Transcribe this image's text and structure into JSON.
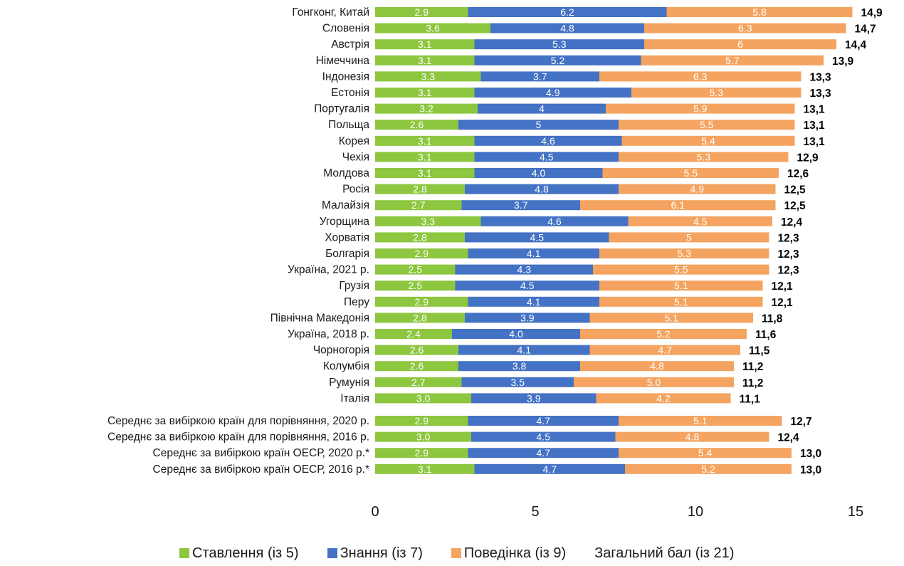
{
  "chart_data": {
    "type": "bar",
    "orientation": "horizontal",
    "stacked": true,
    "categories": [
      "Гонгконг, Китай",
      "Словенія",
      "Австрія",
      "Німеччина",
      "Індонезія",
      "Естонія",
      "Португалія",
      "Польща",
      "Корея",
      "Чехія",
      "Молдова",
      "Росія",
      "Малайзія",
      "Угорщина",
      "Хорватія",
      "Болгарія",
      "Україна, 2021 р.",
      "Грузія",
      "Перу",
      "Північна Македонія",
      "Україна, 2018 р.",
      "Чорногорія",
      "Колумбія",
      "Румунія",
      "Італія",
      "Середнє за вибіркою країн для порівняння, 2020 р.",
      "Середнє за вибіркою країн для порівняння, 2016 р.",
      "Середнє за вибіркою країн ОЕСР, 2020 р.*",
      "Середнє за вибіркою країн ОЕСР, 2016 р.*"
    ],
    "group_gap_before_index": 25,
    "series": [
      {
        "name": "Ставлення (із 5)",
        "color": "#8dc63f",
        "values": [
          2.9,
          3.6,
          3.1,
          3.1,
          3.3,
          3.1,
          3.2,
          2.6,
          3.1,
          3.1,
          3.1,
          2.8,
          2.7,
          3.3,
          2.8,
          2.9,
          2.5,
          2.5,
          2.9,
          2.8,
          2.4,
          2.6,
          2.6,
          2.7,
          3.0,
          2.9,
          3.0,
          2.9,
          3.1
        ],
        "labels": [
          "2.9",
          "3.6",
          "3.1",
          "3.1",
          "3.3",
          "3.1",
          "3.2",
          "2.6",
          "3.1",
          "3.1",
          "3.1",
          "2.8",
          "2.7",
          "3.3",
          "2.8",
          "2.9",
          "2.5",
          "2.5",
          "2.9",
          "2.8",
          "2.4",
          "2.6",
          "2.6",
          "2.7",
          "3.0",
          "2.9",
          "3.0",
          "2.9",
          "3.1"
        ]
      },
      {
        "name": "Знання (із 7)",
        "color": "#4472c4",
        "values": [
          6.2,
          4.8,
          5.3,
          5.2,
          3.7,
          4.9,
          4.0,
          5.0,
          4.6,
          4.5,
          4.0,
          4.8,
          3.7,
          4.6,
          4.5,
          4.1,
          4.3,
          4.5,
          4.1,
          3.9,
          4.0,
          4.1,
          3.8,
          3.5,
          3.9,
          4.7,
          4.5,
          4.7,
          4.7
        ],
        "labels": [
          "6.2",
          "4.8",
          "5.3",
          "5.2",
          "3.7",
          "4.9",
          "4",
          "5",
          "4.6",
          "4.5",
          "4.0",
          "4.8",
          "3.7",
          "4.6",
          "4.5",
          "4.1",
          "4.3",
          "4.5",
          "4.1",
          "3.9",
          "4.0",
          "4.1",
          "3.8",
          "3.5",
          "3.9",
          "4.7",
          "4.5",
          "4.7",
          "4.7"
        ]
      },
      {
        "name": "Поведінка (із 9)",
        "color": "#f4a460",
        "values": [
          5.8,
          6.3,
          6.0,
          5.7,
          6.3,
          5.3,
          5.9,
          5.5,
          5.4,
          5.3,
          5.5,
          4.9,
          6.1,
          4.5,
          5.0,
          5.3,
          5.5,
          5.1,
          5.1,
          5.1,
          5.2,
          4.7,
          4.8,
          5.0,
          4.2,
          5.1,
          4.8,
          5.4,
          5.2
        ],
        "labels": [
          "5.8",
          "6.3",
          "6",
          "5.7",
          "6.3",
          "5.3",
          "5.9",
          "5.5",
          "5.4",
          "5.3",
          "5.5",
          "4.9",
          "6.1",
          "4.5",
          "5",
          "5.3",
          "5.5",
          "5.1",
          "5.1",
          "5.1",
          "5.2",
          "4.7",
          "4.8",
          "5.0",
          "4.2",
          "5.1",
          "4.8",
          "5.4",
          "5.2"
        ]
      }
    ],
    "totals": {
      "name": "Загальний бал (із 21)",
      "labels": [
        "14,9",
        "14,7",
        "14,4",
        "13,9",
        "13,3",
        "13,3",
        "13,1",
        "13,1",
        "13,1",
        "12,9",
        "12,6",
        "12,5",
        "12,5",
        "12,4",
        "12,3",
        "12,3",
        "12,3",
        "12,1",
        "12,1",
        "11,8",
        "11,6",
        "11,5",
        "11,2",
        "11,2",
        "11,1",
        "12,7",
        "12,4",
        "13,0",
        "13,0"
      ]
    },
    "xlim": [
      0,
      15
    ],
    "xticks": [
      "0",
      "5",
      "10",
      "15"
    ],
    "xticks_values": [
      0,
      5,
      10,
      15
    ],
    "grid": false,
    "legend_position": "bottom",
    "title": "",
    "xlabel": "",
    "ylabel": ""
  }
}
